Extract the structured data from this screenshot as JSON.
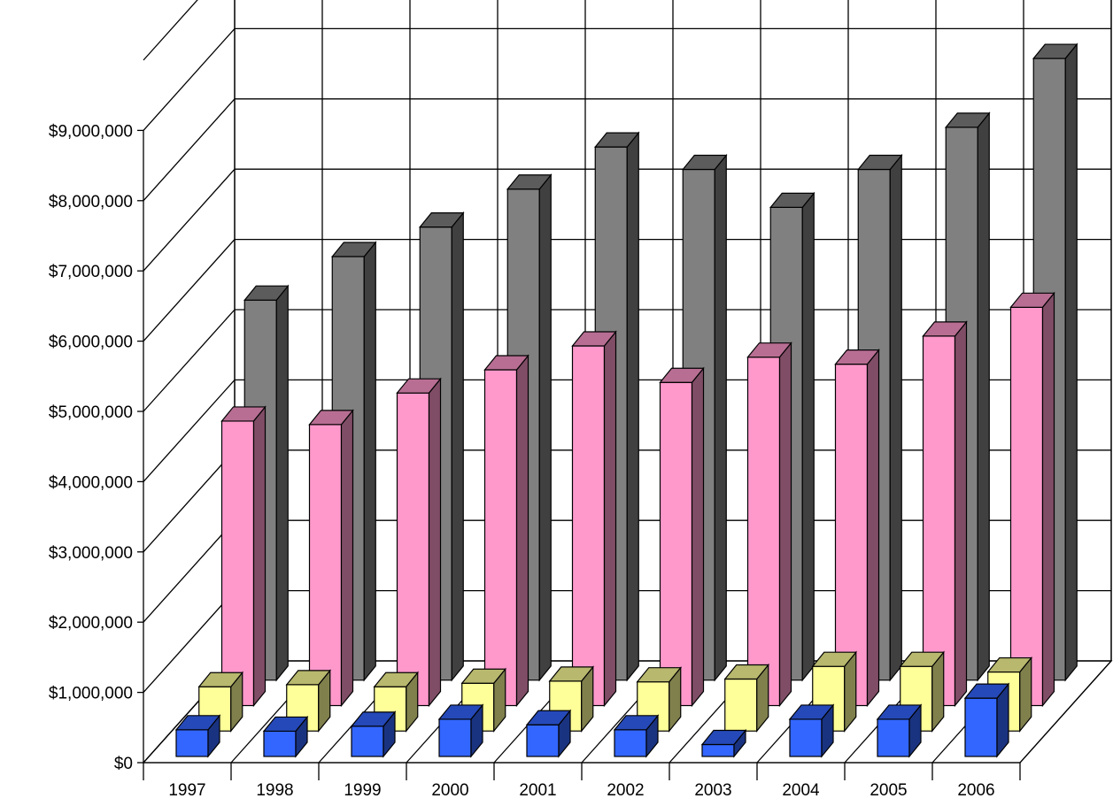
{
  "chart_data": {
    "type": "bar",
    "variant": "3d-clustered-depth",
    "categories": [
      "1997",
      "1998",
      "1999",
      "2000",
      "2001",
      "2002",
      "2003",
      "2004",
      "2005",
      "2006"
    ],
    "series": [
      {
        "color": "#3366ff",
        "values": [
          380000,
          360000,
          430000,
          530000,
          450000,
          380000,
          170000,
          530000,
          530000,
          830000
        ]
      },
      {
        "color": "#ffff99",
        "values": [
          630000,
          660000,
          630000,
          680000,
          710000,
          700000,
          740000,
          920000,
          920000,
          840000
        ]
      },
      {
        "color": "#ff99cc",
        "values": [
          4050000,
          4000000,
          4450000,
          4780000,
          5120000,
          4600000,
          4960000,
          4860000,
          5260000,
          5670000
        ]
      },
      {
        "color": "#808080",
        "values": [
          5410000,
          6030000,
          6450000,
          6990000,
          7590000,
          7270000,
          6730000,
          7270000,
          7870000,
          8850000
        ]
      }
    ],
    "ylim": [
      0,
      9000000
    ],
    "yticks": [
      "$0",
      "$1,000,000",
      "$2,000,000",
      "$3,000,000",
      "$4,000,000",
      "$5,000,000",
      "$6,000,000",
      "$7,000,000",
      "$8,000,000",
      "$9,000,000"
    ],
    "grid": true,
    "legend": "none"
  }
}
